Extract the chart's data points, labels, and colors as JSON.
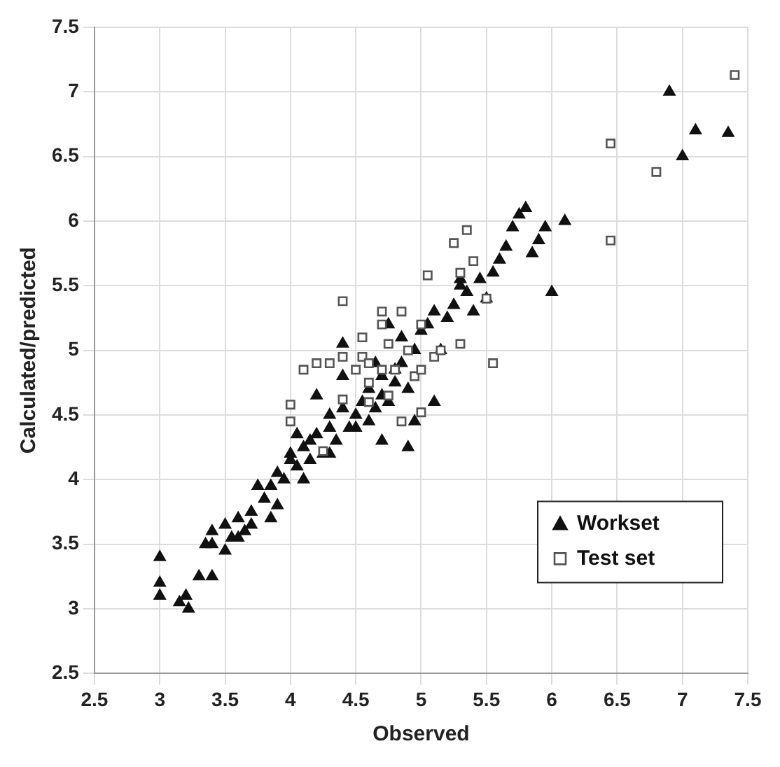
{
  "chart_data": {
    "type": "scatter",
    "xlabel": "Observed",
    "ylabel": "Calculated/predicted",
    "xlim": [
      2.5,
      7.5
    ],
    "ylim": [
      2.5,
      7.5
    ],
    "xticks": [
      2.5,
      3,
      3.5,
      4,
      4.5,
      5,
      5.5,
      6,
      6.5,
      7,
      7.5
    ],
    "yticks": [
      2.5,
      3,
      3.5,
      4,
      4.5,
      5,
      5.5,
      6,
      6.5,
      7,
      7.5
    ],
    "grid": true,
    "legend": "bottom right",
    "series": [
      {
        "name": "Workset",
        "color": "#111111",
        "marker": "triangle",
        "x": [
          3.0,
          3.0,
          3.0,
          3.15,
          3.2,
          3.22,
          3.3,
          3.4,
          3.35,
          3.4,
          3.4,
          3.5,
          3.55,
          3.5,
          3.6,
          3.65,
          3.6,
          3.7,
          3.75,
          3.8,
          3.7,
          3.85,
          3.9,
          3.95,
          3.9,
          3.85,
          4.0,
          4.05,
          4.1,
          4.0,
          4.1,
          4.15,
          4.2,
          4.25,
          4.3,
          4.3,
          4.35,
          4.4,
          4.45,
          4.5,
          4.55,
          4.6,
          4.6,
          4.65,
          4.7,
          4.7,
          4.75,
          4.8,
          4.85,
          4.9,
          4.95,
          4.9,
          4.85,
          5.0,
          5.05,
          5.1,
          5.15,
          5.2,
          5.25,
          5.3,
          5.35,
          5.4,
          5.45,
          5.5,
          5.55,
          5.6,
          5.65,
          5.7,
          5.75,
          5.8,
          5.85,
          5.9,
          5.95,
          6.0,
          6.1,
          5.3,
          5.1,
          4.4,
          4.2,
          4.3,
          4.5,
          4.05,
          4.15,
          4.8,
          4.75,
          6.9,
          7.0,
          7.1,
          7.35,
          4.7,
          4.95,
          4.65,
          4.4
        ],
        "values": [
          3.4,
          3.2,
          3.1,
          3.05,
          3.1,
          3.0,
          3.25,
          3.25,
          3.5,
          3.6,
          3.5,
          3.65,
          3.55,
          3.45,
          3.7,
          3.6,
          3.55,
          3.75,
          3.95,
          3.85,
          3.65,
          3.95,
          3.8,
          4.0,
          4.05,
          3.7,
          4.2,
          4.1,
          4.25,
          4.15,
          4.0,
          4.3,
          4.35,
          4.2,
          4.4,
          4.5,
          4.3,
          4.55,
          4.4,
          4.5,
          4.6,
          4.45,
          4.7,
          4.55,
          4.8,
          4.65,
          4.6,
          4.75,
          4.9,
          4.7,
          5.0,
          4.25,
          5.1,
          5.15,
          5.2,
          5.3,
          5.0,
          5.25,
          5.35,
          5.5,
          5.45,
          5.3,
          5.55,
          5.4,
          5.6,
          5.7,
          5.8,
          5.95,
          6.05,
          6.1,
          5.75,
          5.85,
          5.95,
          5.45,
          6.0,
          5.55,
          4.6,
          5.05,
          4.65,
          4.2,
          4.4,
          4.35,
          4.15,
          4.85,
          5.2,
          7.0,
          6.5,
          6.7,
          6.68,
          4.3,
          4.45,
          4.9,
          4.8
        ]
      },
      {
        "name": "Test set",
        "color": "#555555",
        "marker": "square",
        "x": [
          4.0,
          4.0,
          4.1,
          4.2,
          4.3,
          4.4,
          4.4,
          4.5,
          4.55,
          4.55,
          4.6,
          4.6,
          4.7,
          4.7,
          4.75,
          4.75,
          4.8,
          4.85,
          4.9,
          4.95,
          5.0,
          5.0,
          5.05,
          5.1,
          5.15,
          5.0,
          5.25,
          5.3,
          5.35,
          5.4,
          5.5,
          5.55,
          5.3,
          4.6,
          4.4,
          4.25,
          4.7,
          4.85,
          6.45,
          6.45,
          6.8,
          7.4
        ],
        "values": [
          4.58,
          4.45,
          4.85,
          4.9,
          4.9,
          5.38,
          4.95,
          4.85,
          5.1,
          4.95,
          4.75,
          4.9,
          5.3,
          5.2,
          5.05,
          4.65,
          4.85,
          5.3,
          5.0,
          4.8,
          5.2,
          4.85,
          5.58,
          4.95,
          5.0,
          4.52,
          5.83,
          5.6,
          5.93,
          5.69,
          5.4,
          4.9,
          5.05,
          4.6,
          4.62,
          4.22,
          4.85,
          4.45,
          6.6,
          5.85,
          6.38,
          7.13
        ]
      }
    ]
  }
}
